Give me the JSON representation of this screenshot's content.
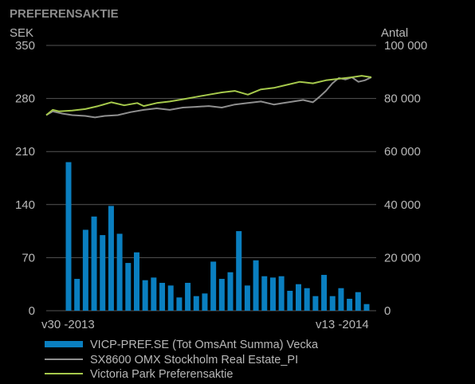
{
  "chart_data": {
    "type": "bar+line",
    "title": "PREFERENSAKTIE",
    "left_axis": {
      "label": "SEK",
      "ticks": [
        "350",
        "280",
        "210",
        "140",
        "70",
        "0"
      ],
      "ylim": [
        0,
        350
      ]
    },
    "right_axis": {
      "label": "Antal",
      "ticks": [
        "100 000",
        "80 000",
        "60 000",
        "40 000",
        "20 000",
        "0"
      ],
      "ylim": [
        0,
        100000
      ]
    },
    "x_labels": {
      "start": "v30 -2013",
      "end": "v13 -2014"
    },
    "bar_series": {
      "name": "VICP-PREF.SE (Tot OmsAnt Summa) Vecka",
      "color": "#0a7fc0",
      "axis": "right",
      "values": [
        56000,
        12000,
        30500,
        35500,
        28500,
        39500,
        29000,
        18000,
        22000,
        11500,
        12500,
        10500,
        9500,
        5000,
        10500,
        5500,
        6500,
        18500,
        12000,
        14500,
        30000,
        9500,
        19000,
        13000,
        12500,
        13000,
        7500,
        10000,
        8500,
        5500,
        13500,
        5500,
        8500,
        4500,
        7000,
        2500
      ]
    },
    "line_series": [
      {
        "name": "SX8600 OMX Stockholm Real Estate_PI",
        "color": "#8f8f8f",
        "axis": "left",
        "x": [
          0,
          0.02,
          0.05,
          0.08,
          0.12,
          0.15,
          0.18,
          0.22,
          0.26,
          0.3,
          0.34,
          0.38,
          0.42,
          0.46,
          0.5,
          0.54,
          0.58,
          0.62,
          0.66,
          0.7,
          0.73,
          0.76,
          0.79,
          0.82,
          0.84,
          0.86,
          0.88,
          0.9,
          0.92,
          0.94,
          0.96,
          0.98,
          1.0
        ],
        "y": [
          258,
          263,
          260,
          258,
          257,
          255,
          257,
          258,
          262,
          265,
          267,
          265,
          268,
          269,
          270,
          268,
          272,
          274,
          276,
          272,
          274,
          276,
          278,
          275,
          282,
          290,
          300,
          307,
          305,
          308,
          302,
          304,
          308
        ]
      },
      {
        "name": "Victoria Park Preferensaktie",
        "color": "#a6c94c",
        "axis": "left",
        "x": [
          0,
          0.02,
          0.04,
          0.08,
          0.12,
          0.16,
          0.2,
          0.24,
          0.28,
          0.3,
          0.34,
          0.38,
          0.42,
          0.46,
          0.5,
          0.54,
          0.58,
          0.62,
          0.66,
          0.7,
          0.74,
          0.78,
          0.82,
          0.86,
          0.9,
          0.94,
          0.97,
          1.0
        ],
        "y": [
          258,
          265,
          263,
          264,
          266,
          270,
          275,
          271,
          274,
          270,
          274,
          276,
          279,
          282,
          285,
          288,
          290,
          285,
          292,
          294,
          298,
          302,
          300,
          304,
          306,
          308,
          310,
          308
        ]
      }
    ],
    "legend": {
      "placement": "bottom",
      "entries": [
        {
          "label": "VICP-PREF.SE (Tot OmsAnt Summa) Vecka",
          "kind": "bar",
          "color": "#0a7fc0"
        },
        {
          "label": "SX8600 OMX Stockholm Real Estate_PI",
          "kind": "line",
          "color": "#8f8f8f"
        },
        {
          "label": "Victoria Park Preferensaktie",
          "kind": "line",
          "color": "#a6c94c"
        }
      ]
    },
    "grid": true
  }
}
